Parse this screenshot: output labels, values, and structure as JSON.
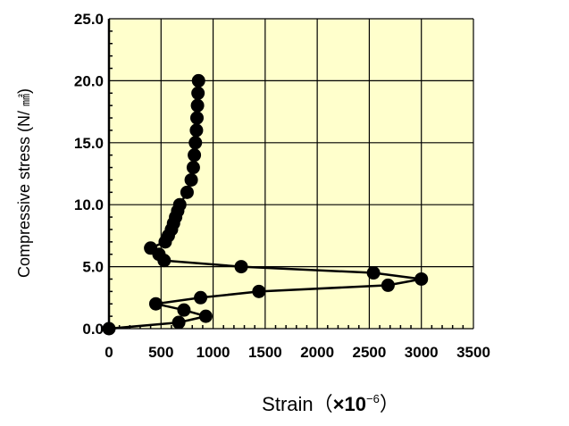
{
  "chart_data": {
    "type": "scatter",
    "title": "",
    "xlabel": "Strain",
    "xlabel_paren_open": "（",
    "xlabel_times": "×",
    "xlabel_base": "10",
    "xlabel_exp": "−6",
    "xlabel_paren_close": "）",
    "ylabel_main": "Compressive stress (N/ ",
    "ylabel_unit": "㎟",
    "ylabel_close": ")",
    "xlim": [
      0,
      3500
    ],
    "ylim": [
      0,
      25
    ],
    "xticks": [
      "0",
      "500",
      "1000",
      "1500",
      "2000",
      "2500",
      "3000",
      "3500"
    ],
    "yticks": [
      "0.0",
      "5.0",
      "10.0",
      "15.0",
      "20.0",
      "25.0"
    ],
    "grid": true,
    "colors": {
      "plot_bg": "#ffffcc",
      "grid": "#000000",
      "series": "#000000"
    },
    "series": [
      {
        "x": [
          0,
          670,
          930,
          720,
          450,
          880,
          1440,
          2680,
          3000,
          2540,
          1270,
          530,
          480,
          400,
          540,
          570,
          600,
          620,
          640,
          660,
          680,
          750,
          790,
          810,
          820,
          830,
          840,
          845,
          850,
          855,
          860
        ],
        "y": [
          0,
          0.5,
          1.0,
          1.5,
          2.0,
          2.5,
          3.0,
          3.5,
          4.0,
          4.5,
          5.0,
          5.5,
          6.0,
          6.5,
          7.0,
          7.5,
          8.0,
          8.5,
          9.0,
          9.5,
          10.0,
          11.0,
          12.0,
          13.0,
          14.0,
          15.0,
          16.0,
          17.0,
          18.0,
          19.0,
          20.0
        ]
      }
    ]
  }
}
